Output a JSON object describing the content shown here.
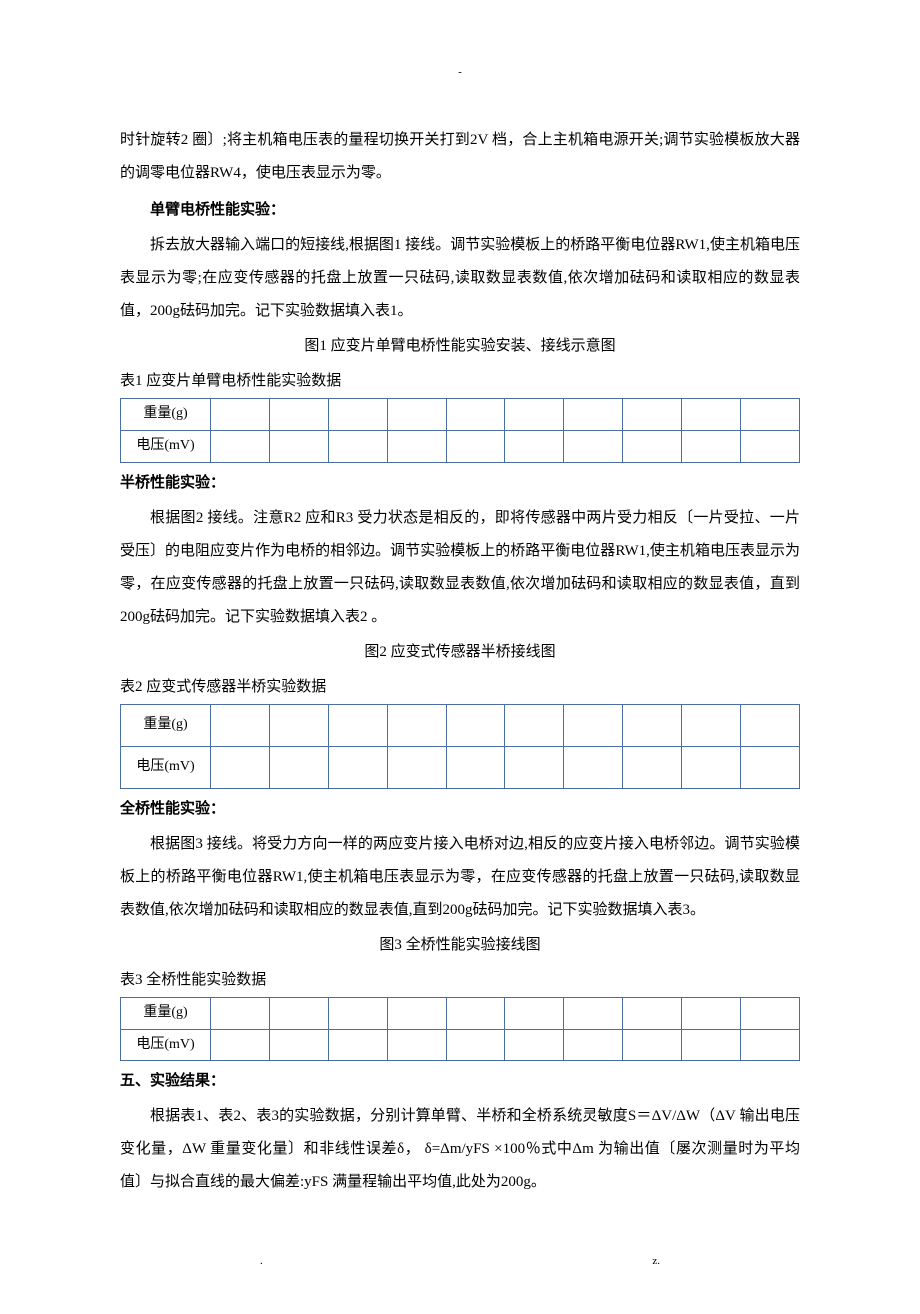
{
  "topMarker": "-",
  "para1": "时针旋转2 圈〕;将主机箱电压表的量程切换开关打到2V 档，合上主机箱电源开关;调节实验模板放大器的调零电位器RW4，使电压表显示为零。",
  "heading1": "单臂电桥性能实验：",
  "para2": "拆去放大器输入端口的短接线,根据图1 接线。调节实验模板上的桥路平衡电位器RW1,使主机箱电压表显示为零;在应变传感器的托盘上放置一只砝码,读取数显表数值,依次增加砝码和读取相应的数显表值，200g砝码加完。记下实验数据填入表1。",
  "fig1": "图1 应变片单臂电桥性能实验安装、接线示意图",
  "table1Caption": "表1 应变片单臂电桥性能实验数据",
  "rowWeight": "重量(g)",
  "rowVoltage": "电压(mV)",
  "heading2": "半桥性能实验：",
  "para3": "根据图2 接线。注意R2 应和R3 受力状态是相反的，即将传感器中两片受力相反〔一片受拉、一片受压〕的电阻应变片作为电桥的相邻边。调节实验模板上的桥路平衡电位器RW1,使主机箱电压表显示为零，在应变传感器的托盘上放置一只砝码,读取数显表数值,依次增加砝码和读取相应的数显表值，直到200g砝码加完。记下实验数据填入表2 。",
  "fig2": "图2 应变式传感器半桥接线图",
  "table2Caption": "表2 应变式传感器半桥实验数据",
  "heading3": "全桥性能实验：",
  "para4": "根据图3 接线。将受力方向一样的两应变片接入电桥对边,相反的应变片接入电桥邻边。调节实验模板上的桥路平衡电位器RW1,使主机箱电压表显示为零，在应变传感器的托盘上放置一只砝码,读取数显表数值,依次增加砝码和读取相应的数显表值,直到200g砝码加完。记下实验数据填入表3。",
  "fig3": "图3 全桥性能实验接线图",
  "table3Caption": "表3 全桥性能实验数据",
  "heading4": "五、实验结果：",
  "para5": "根据表1、表2、表3的实验数据，分别计算单臂、半桥和全桥系统灵敏度S＝ΔV/ΔW（ΔV 输出电压变化量，ΔW 重量变化量〕和非线性误差δ， δ=Δm/yFS ×100％式中Δm 为输出值〔屡次测量时为平均值〕与拟合直线的最大偏差:yFS 满量程输出平均值,此处为200g。",
  "footerLeft": ".",
  "footerRight": "z.",
  "tableColumns": 10,
  "borderColor": "#4a6ea0"
}
